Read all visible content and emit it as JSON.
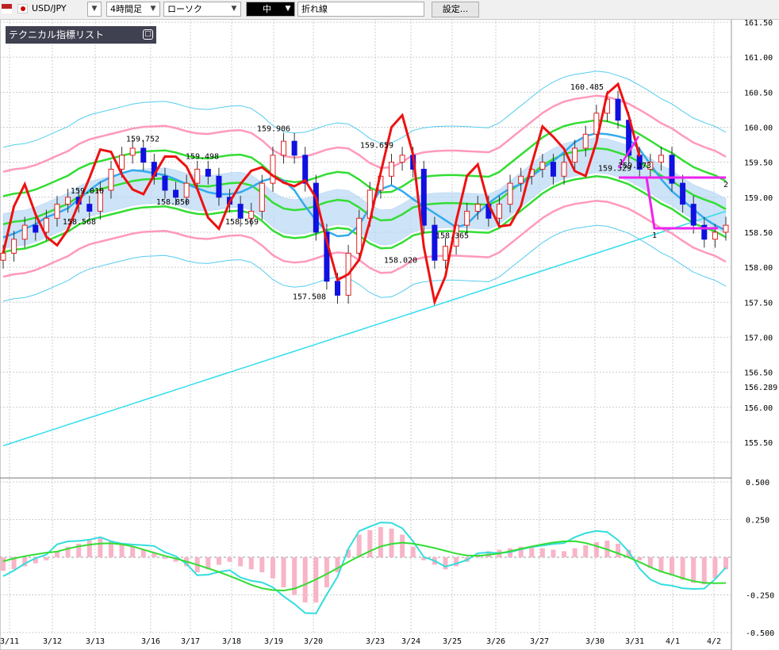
{
  "toolbar": {
    "pair": "USD/JPY",
    "timeframe": "4時間足",
    "chart_type": "ローソク",
    "line_weight": "中",
    "line_mode": "折れ線",
    "settings_label": "設定..."
  },
  "panel": {
    "title": "テクニカル指標リスト",
    "collapse_glyph": "□"
  },
  "colors": {
    "up_candle": "#e02020",
    "down_candle": "#1010e0",
    "bollinger_inner": "#33dd33",
    "bollinger_outer": "#ff99bb",
    "bollinger_3sigma": "#55ccee",
    "ma_fast": "#33aaee",
    "ma_slow": "#33ddee",
    "rsi_line": "#ee1111",
    "cloud": "#b8d8f4",
    "drawing": "#ee22ee",
    "macd_hist": "#f7b5c7",
    "macd_line": "#33dddd",
    "signal_line": "#33dd33"
  },
  "chart_data": {
    "type": "candlestick",
    "instrument": "USD/JPY",
    "timeframe": "4時間足",
    "price_axis": {
      "ticks": [
        "161.50",
        "161.00",
        "160.50",
        "160.00",
        "159.50",
        "159.00",
        "158.50",
        "158.00",
        "157.50",
        "157.00",
        "156.50",
        "156.00",
        "155.50"
      ],
      "current_price_label": "156.289",
      "range": [
        155.25,
        161.5
      ]
    },
    "macd_axis": {
      "ticks": [
        "0.500",
        "0.250",
        "-0.250",
        "-0.500"
      ],
      "range": [
        -0.5,
        0.5
      ]
    },
    "x_labels": [
      "3/11",
      "3/12",
      "3/13",
      "3/16",
      "3/17",
      "3/18",
      "3/19",
      "3/20",
      "3/23",
      "3/24",
      "3/25",
      "3/26",
      "3/27",
      "3/30",
      "3/31",
      "4/1",
      "4/2"
    ],
    "price_labels": [
      {
        "text": "159.752",
        "price": 159.75
      },
      {
        "text": "159.010",
        "price": 159.01
      },
      {
        "text": "158.568",
        "price": 158.57
      },
      {
        "text": "158.850",
        "price": 158.85
      },
      {
        "text": "159.498",
        "price": 159.5
      },
      {
        "text": "158.569",
        "price": 158.57
      },
      {
        "text": "159.906",
        "price": 159.9
      },
      {
        "text": "157.508",
        "price": 157.5
      },
      {
        "text": "159.659",
        "price": 159.66
      },
      {
        "text": "158.020",
        "price": 158.02
      },
      {
        "text": "158.365",
        "price": 158.37
      },
      {
        "text": "160.485",
        "price": 160.49
      },
      {
        "text": "159.373",
        "price": 159.37
      },
      {
        "text": "159.329",
        "price": 159.33
      }
    ],
    "drawing_markers": [
      "1",
      "2",
      "1"
    ],
    "series_close": [
      158.2,
      158.4,
      158.6,
      158.5,
      158.7,
      158.9,
      159.0,
      158.9,
      158.8,
      159.1,
      159.4,
      159.6,
      159.7,
      159.5,
      159.3,
      159.1,
      159.0,
      159.2,
      159.4,
      159.3,
      159.0,
      158.9,
      158.7,
      158.8,
      159.2,
      159.6,
      159.8,
      159.6,
      159.2,
      158.5,
      157.8,
      157.6,
      158.2,
      158.7,
      159.1,
      159.3,
      159.5,
      159.6,
      159.4,
      158.6,
      158.1,
      158.3,
      158.6,
      158.8,
      158.9,
      158.7,
      158.9,
      159.2,
      159.3,
      159.4,
      159.5,
      159.3,
      159.5,
      159.7,
      159.9,
      160.2,
      160.4,
      160.1,
      159.6,
      159.4,
      159.5,
      159.6,
      159.2,
      158.9,
      158.6,
      158.4,
      158.5,
      158.6
    ],
    "macd_histogram": [
      -0.09,
      -0.08,
      -0.06,
      -0.04,
      -0.02,
      0.04,
      0.07,
      0.09,
      0.11,
      0.13,
      0.11,
      0.09,
      0.07,
      0.05,
      0.03,
      -0.01,
      -0.03,
      -0.06,
      -0.1,
      -0.08,
      -0.05,
      -0.03,
      -0.06,
      -0.08,
      -0.1,
      -0.14,
      -0.2,
      -0.25,
      -0.3,
      -0.3,
      -0.2,
      -0.1,
      0.05,
      0.15,
      0.18,
      0.2,
      0.19,
      0.15,
      0.07,
      -0.02,
      -0.05,
      -0.08,
      -0.06,
      -0.03,
      0.02,
      0.04,
      0.05,
      0.06,
      0.07,
      0.07,
      0.06,
      0.05,
      0.04,
      0.06,
      0.08,
      0.1,
      0.11,
      0.09,
      0.05,
      -0.02,
      -0.07,
      -0.1,
      -0.12,
      -0.15,
      -0.17,
      -0.18,
      -0.14,
      -0.08
    ]
  }
}
